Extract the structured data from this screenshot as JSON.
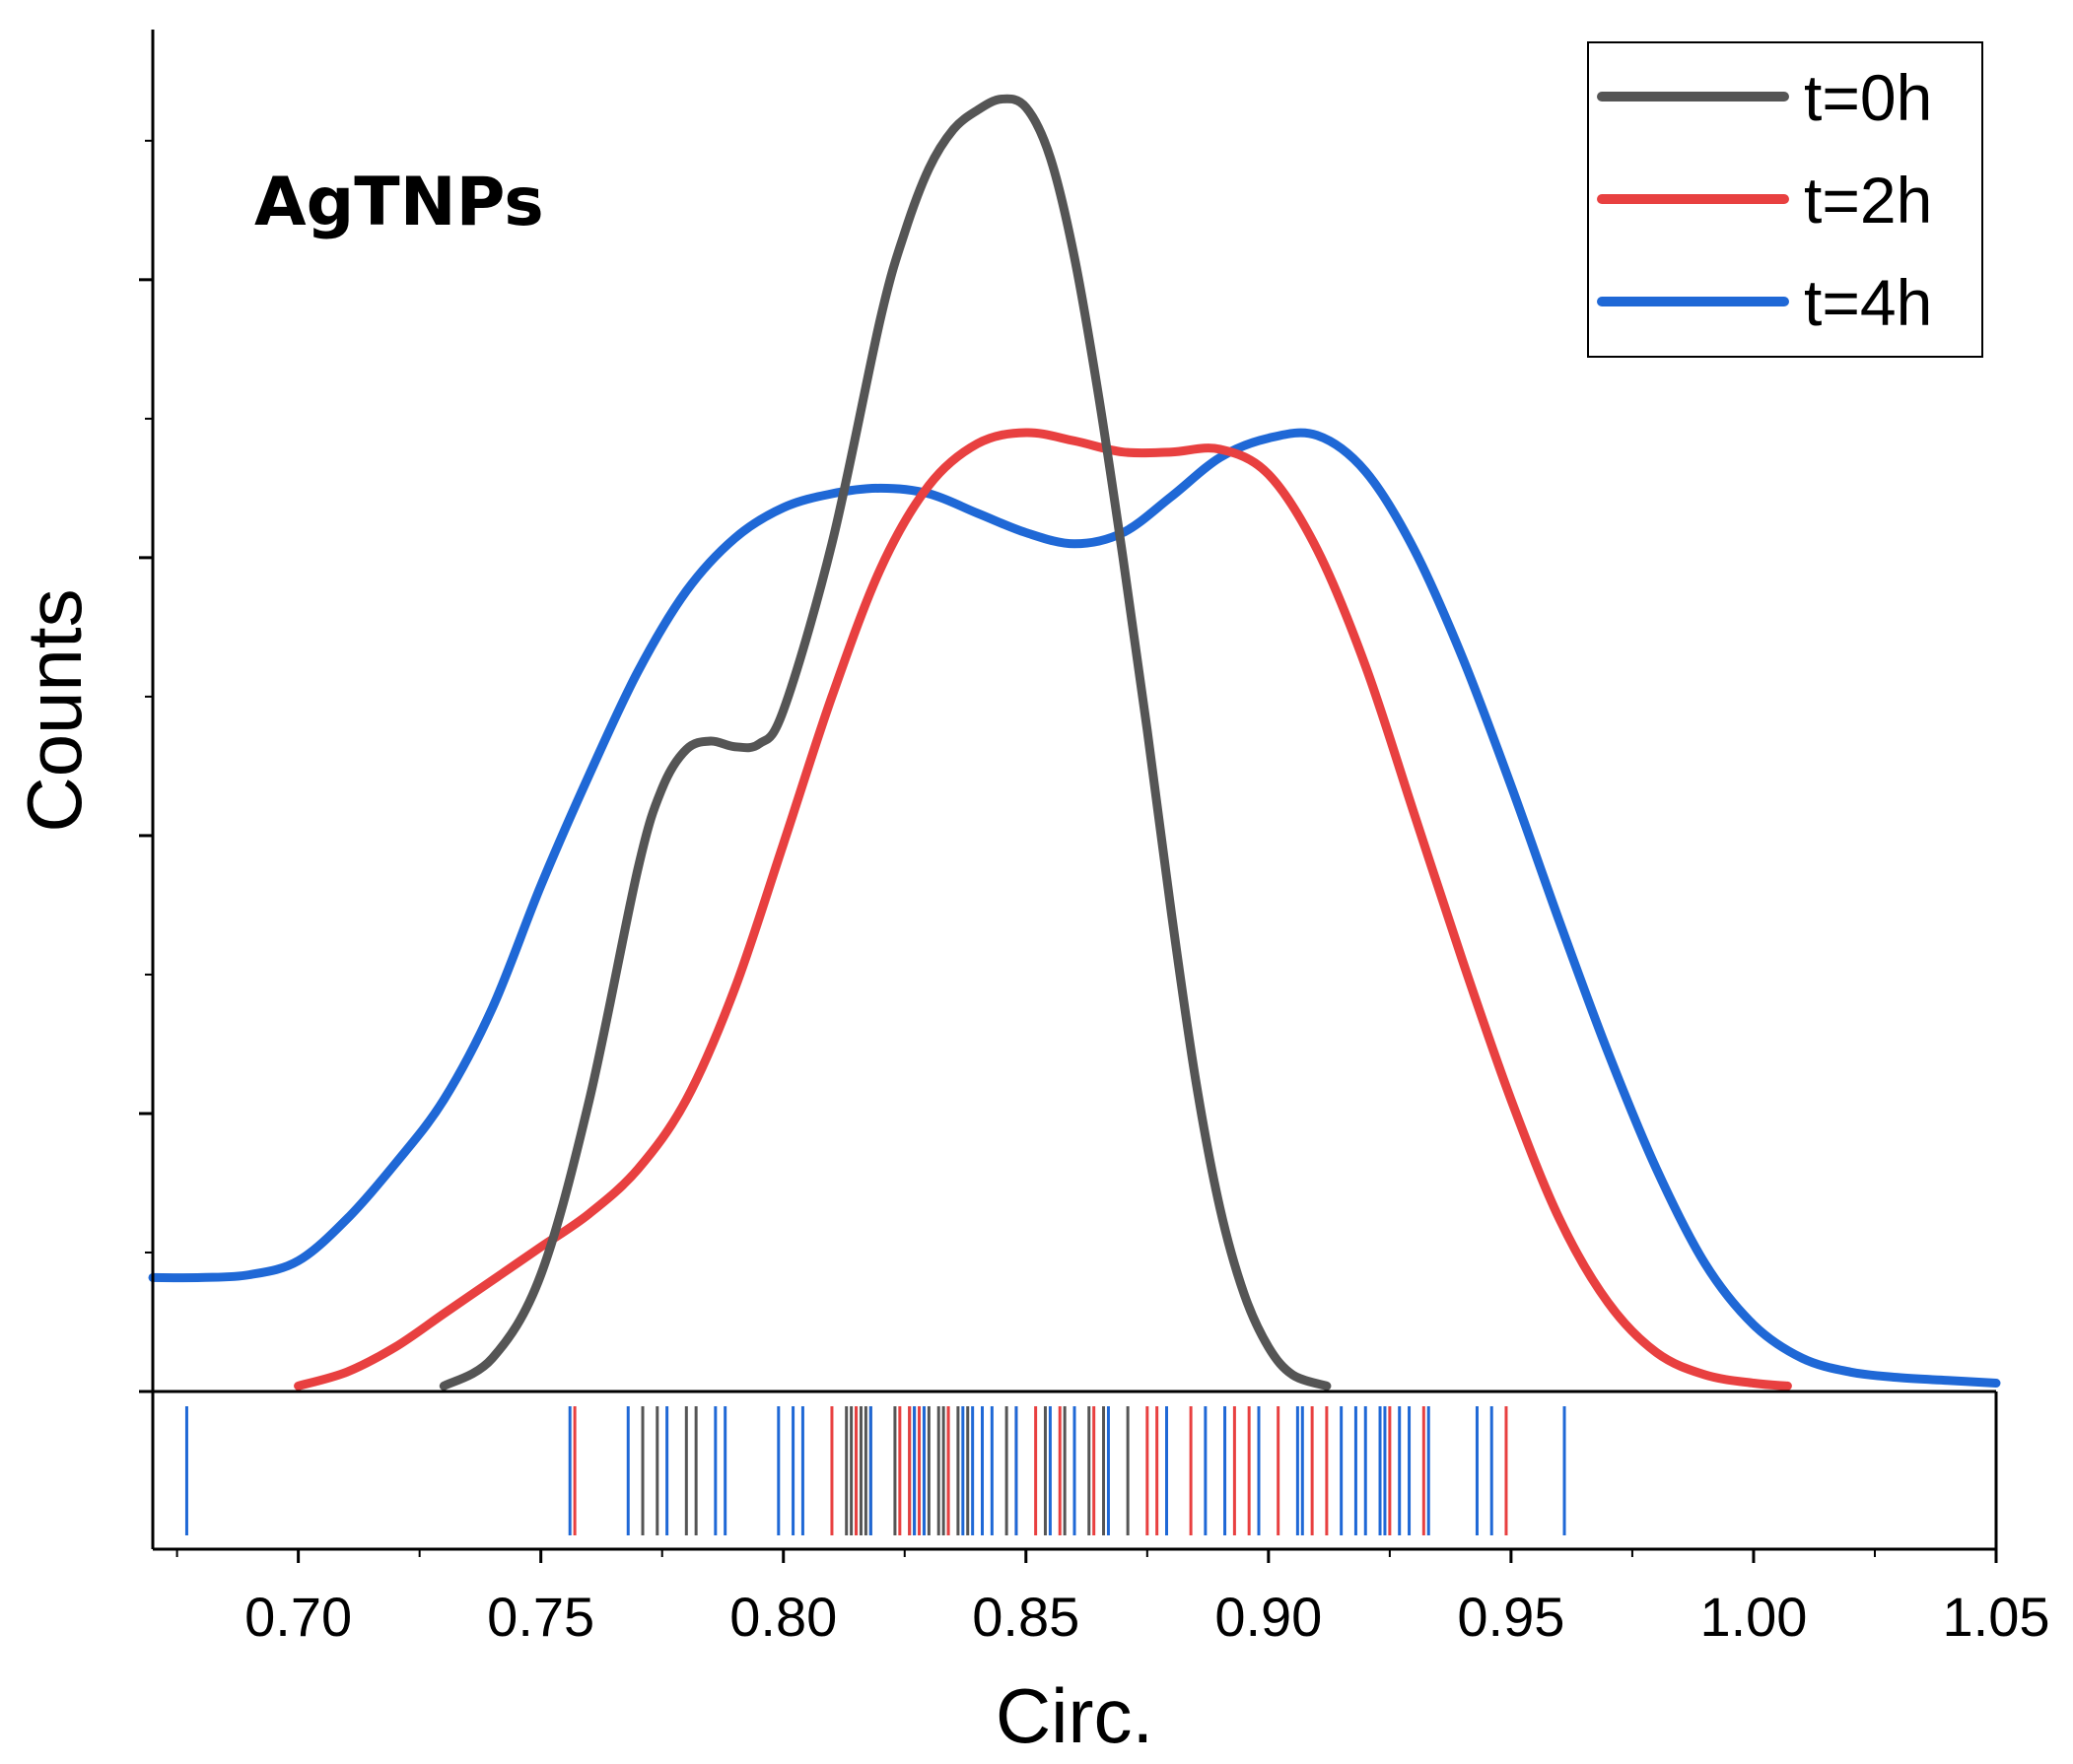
{
  "chart_data": {
    "type": "line",
    "subtype": "kernel density estimate with rug plot",
    "annotation": "AgTNPs",
    "xlabel": "Circ.",
    "ylabel": "Counts",
    "xlim": [
      0.67,
      1.05
    ],
    "ylim": [
      0,
      4.9
    ],
    "x_ticks": [
      0.7,
      0.75,
      0.8,
      0.85,
      0.9,
      0.95,
      1.0,
      1.05
    ],
    "x_tick_labels": [
      "0.70",
      "0.75",
      "0.80",
      "0.85",
      "0.90",
      "0.95",
      "1.00",
      "1.05"
    ],
    "y_tick_labels_shown": false,
    "legend_position": "top-right",
    "series": [
      {
        "name": "t=0h",
        "color": "#555555",
        "points": [
          [
            0.73,
            0.02
          ],
          [
            0.74,
            0.12
          ],
          [
            0.75,
            0.42
          ],
          [
            0.76,
            1.05
          ],
          [
            0.77,
            1.88
          ],
          [
            0.775,
            2.17
          ],
          [
            0.78,
            2.31
          ],
          [
            0.785,
            2.34
          ],
          [
            0.79,
            2.32
          ],
          [
            0.795,
            2.33
          ],
          [
            0.8,
            2.45
          ],
          [
            0.81,
            3.05
          ],
          [
            0.82,
            3.86
          ],
          [
            0.825,
            4.17
          ],
          [
            0.83,
            4.4
          ],
          [
            0.835,
            4.54
          ],
          [
            0.84,
            4.61
          ],
          [
            0.845,
            4.65
          ],
          [
            0.85,
            4.62
          ],
          [
            0.855,
            4.44
          ],
          [
            0.86,
            4.08
          ],
          [
            0.865,
            3.58
          ],
          [
            0.87,
            3.0
          ],
          [
            0.875,
            2.38
          ],
          [
            0.88,
            1.72
          ],
          [
            0.885,
            1.12
          ],
          [
            0.89,
            0.66
          ],
          [
            0.895,
            0.35
          ],
          [
            0.9,
            0.16
          ],
          [
            0.905,
            0.06
          ],
          [
            0.912,
            0.02
          ]
        ]
      },
      {
        "name": "t=2h",
        "color": "#e84040",
        "points": [
          [
            0.7,
            0.02
          ],
          [
            0.71,
            0.07
          ],
          [
            0.72,
            0.16
          ],
          [
            0.73,
            0.28
          ],
          [
            0.74,
            0.4
          ],
          [
            0.75,
            0.52
          ],
          [
            0.76,
            0.64
          ],
          [
            0.77,
            0.8
          ],
          [
            0.78,
            1.05
          ],
          [
            0.79,
            1.45
          ],
          [
            0.8,
            1.97
          ],
          [
            0.81,
            2.5
          ],
          [
            0.82,
            2.96
          ],
          [
            0.83,
            3.26
          ],
          [
            0.84,
            3.41
          ],
          [
            0.85,
            3.45
          ],
          [
            0.86,
            3.42
          ],
          [
            0.87,
            3.38
          ],
          [
            0.88,
            3.38
          ],
          [
            0.89,
            3.39
          ],
          [
            0.9,
            3.3
          ],
          [
            0.91,
            3.03
          ],
          [
            0.92,
            2.61
          ],
          [
            0.93,
            2.08
          ],
          [
            0.94,
            1.55
          ],
          [
            0.95,
            1.05
          ],
          [
            0.96,
            0.62
          ],
          [
            0.97,
            0.32
          ],
          [
            0.98,
            0.14
          ],
          [
            0.99,
            0.06
          ],
          [
            1.0,
            0.03
          ],
          [
            1.007,
            0.02
          ]
        ]
      },
      {
        "name": "t=4h",
        "color": "#1f68d6",
        "points": [
          [
            0.67,
            0.41
          ],
          [
            0.68,
            0.41
          ],
          [
            0.69,
            0.42
          ],
          [
            0.7,
            0.47
          ],
          [
            0.71,
            0.62
          ],
          [
            0.72,
            0.82
          ],
          [
            0.73,
            1.05
          ],
          [
            0.74,
            1.38
          ],
          [
            0.75,
            1.82
          ],
          [
            0.76,
            2.22
          ],
          [
            0.77,
            2.59
          ],
          [
            0.78,
            2.88
          ],
          [
            0.79,
            3.07
          ],
          [
            0.8,
            3.18
          ],
          [
            0.81,
            3.23
          ],
          [
            0.82,
            3.25
          ],
          [
            0.83,
            3.23
          ],
          [
            0.84,
            3.16
          ],
          [
            0.85,
            3.09
          ],
          [
            0.86,
            3.05
          ],
          [
            0.87,
            3.09
          ],
          [
            0.88,
            3.22
          ],
          [
            0.89,
            3.36
          ],
          [
            0.9,
            3.43
          ],
          [
            0.91,
            3.44
          ],
          [
            0.92,
            3.31
          ],
          [
            0.93,
            3.03
          ],
          [
            0.94,
            2.64
          ],
          [
            0.95,
            2.18
          ],
          [
            0.96,
            1.69
          ],
          [
            0.97,
            1.22
          ],
          [
            0.98,
            0.8
          ],
          [
            0.99,
            0.46
          ],
          [
            1.0,
            0.24
          ],
          [
            1.01,
            0.12
          ],
          [
            1.02,
            0.07
          ],
          [
            1.03,
            0.05
          ],
          [
            1.04,
            0.04
          ],
          [
            1.05,
            0.03
          ]
        ]
      }
    ],
    "rug": [
      {
        "series": "t=0h",
        "values": [
          0.771,
          0.774,
          0.78,
          0.782,
          0.813,
          0.814,
          0.815,
          0.816,
          0.817,
          0.818,
          0.823,
          0.826,
          0.827,
          0.829,
          0.83,
          0.832,
          0.833,
          0.834,
          0.836,
          0.838,
          0.846,
          0.854,
          0.858,
          0.863,
          0.866,
          0.871
        ]
      },
      {
        "series": "t=2h",
        "values": [
          0.757,
          0.81,
          0.815,
          0.824,
          0.826,
          0.828,
          0.834,
          0.841,
          0.848,
          0.852,
          0.857,
          0.864,
          0.875,
          0.877,
          0.884,
          0.893,
          0.896,
          0.902,
          0.909,
          0.912,
          0.925,
          0.932,
          0.949
        ]
      },
      {
        "series": "t=4h",
        "values": [
          0.677,
          0.756,
          0.768,
          0.776,
          0.786,
          0.788,
          0.799,
          0.802,
          0.804,
          0.818,
          0.827,
          0.829,
          0.837,
          0.839,
          0.841,
          0.843,
          0.848,
          0.855,
          0.86,
          0.867,
          0.879,
          0.887,
          0.891,
          0.898,
          0.906,
          0.907,
          0.915,
          0.918,
          0.92,
          0.923,
          0.924,
          0.927,
          0.929,
          0.933,
          0.943,
          0.946,
          0.961
        ]
      }
    ]
  }
}
